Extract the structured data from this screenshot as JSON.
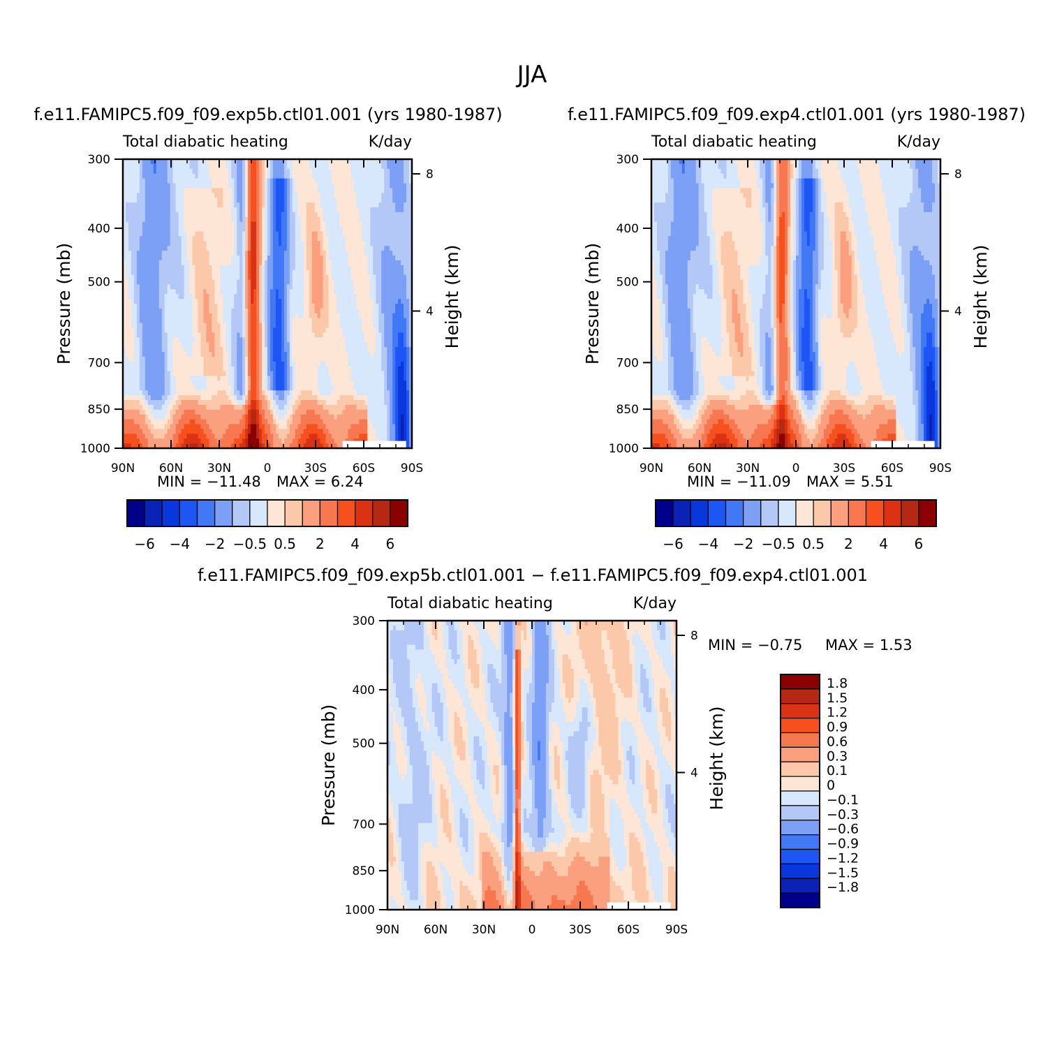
{
  "figure_title": "JJA",
  "chart_data": [
    {
      "type": "heatmap",
      "title": "f.e11.FAMIPC5.f09_f09.exp5b.ctl01.001 (yrs 1980-1987)",
      "left_label": "Total diabatic heating",
      "right_label": "K/day",
      "ylabel": "Pressure (mb)",
      "ylabel2": "Height (km)",
      "x_ticks": [
        "90N",
        "60N",
        "30N",
        "0",
        "30S",
        "60S",
        "90S"
      ],
      "x_range": [
        90,
        -90
      ],
      "y_ticks": [
        "300",
        "400",
        "500",
        "700",
        "850",
        "1000"
      ],
      "y_range": [
        300,
        1000
      ],
      "height_ticks": [
        "8",
        "4"
      ],
      "min": "-11.48",
      "max": "6.24",
      "colorbar_labels": [
        "-6",
        "-4",
        "-2",
        "-0.5",
        "0.5",
        "2",
        "4",
        "6"
      ]
    },
    {
      "type": "heatmap",
      "title": "f.e11.FAMIPC5.f09_f09.exp4.ctl01.001 (yrs 1980-1987)",
      "left_label": "Total diabatic heating",
      "right_label": "K/day",
      "ylabel": "Pressure (mb)",
      "ylabel2": "Height (km)",
      "x_ticks": [
        "90N",
        "60N",
        "30N",
        "0",
        "30S",
        "60S",
        "90S"
      ],
      "x_range": [
        90,
        -90
      ],
      "y_ticks": [
        "300",
        "400",
        "500",
        "700",
        "850",
        "1000"
      ],
      "y_range": [
        300,
        1000
      ],
      "height_ticks": [
        "8",
        "4"
      ],
      "min": "-11.09",
      "max": "5.51",
      "colorbar_labels": [
        "-6",
        "-4",
        "-2",
        "-0.5",
        "0.5",
        "2",
        "4",
        "6"
      ]
    },
    {
      "type": "heatmap",
      "title": "f.e11.FAMIPC5.f09_f09.exp5b.ctl01.001 - f.e11.FAMIPC5.f09_f09.exp4.ctl01.001",
      "left_label": "Total diabatic heating",
      "right_label": "K/day",
      "ylabel": "Pressure (mb)",
      "ylabel2": "Height (km)",
      "x_ticks": [
        "90N",
        "60N",
        "30N",
        "0",
        "30S",
        "60S",
        "90S"
      ],
      "x_range": [
        90,
        -90
      ],
      "y_ticks": [
        "300",
        "400",
        "500",
        "700",
        "850",
        "1000"
      ],
      "y_range": [
        300,
        1000
      ],
      "height_ticks": [
        "8",
        "4"
      ],
      "min": "-0.75",
      "max": "1.53",
      "colorbar_labels": [
        "1.8",
        "1.5",
        "1.2",
        "0.9",
        "0.6",
        "0.3",
        "0.1",
        "0",
        "-0.1",
        "-0.3",
        "-0.6",
        "-0.9",
        "-1.2",
        "-1.5",
        "-1.8"
      ]
    }
  ],
  "palette": [
    "#00008b",
    "#0a23b4",
    "#0a37dc",
    "#1e55f5",
    "#4178f5",
    "#7ba0f5",
    "#b4c8f8",
    "#d7e8fc",
    "#fde6d6",
    "#fcc8aa",
    "#faa07f",
    "#f77850",
    "#f5501e",
    "#dc3214",
    "#b42814",
    "#8b0000"
  ]
}
